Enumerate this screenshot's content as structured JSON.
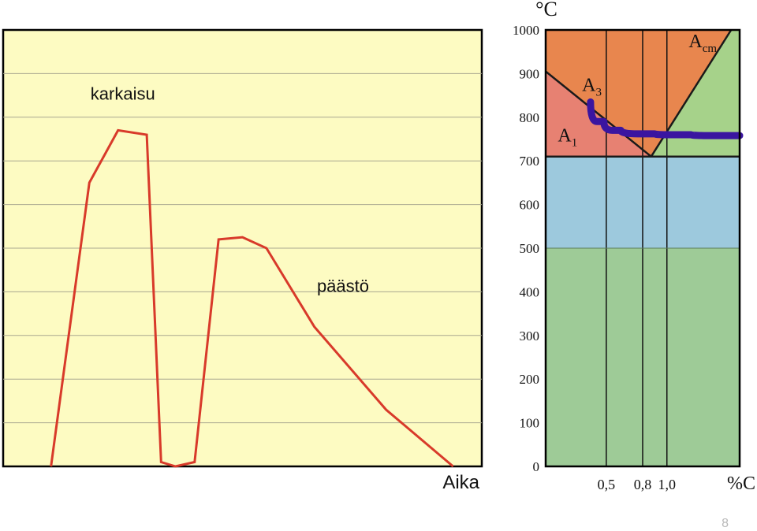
{
  "chart_data": [
    {
      "type": "line",
      "xlabel": "Aika",
      "series": [
        {
          "name": "",
          "points": [
            [
              0.1,
              0
            ],
            [
              0.18,
              650
            ],
            [
              0.24,
              770
            ],
            [
              0.3,
              760
            ],
            [
              0.33,
              10
            ],
            [
              0.36,
              0
            ],
            [
              0.4,
              10
            ],
            [
              0.45,
              520
            ],
            [
              0.5,
              525
            ],
            [
              0.55,
              500
            ],
            [
              0.65,
              320
            ],
            [
              0.8,
              130
            ],
            [
              0.94,
              0
            ]
          ]
        }
      ],
      "annotations": [
        {
          "label": "karkaisu",
          "x": 0.25,
          "y": 840
        },
        {
          "label": "päästö",
          "x": 0.71,
          "y": 400
        }
      ],
      "colors": {
        "background": "#fdfbc2",
        "line": "#d83a2a",
        "grid": "#a9a790"
      }
    },
    {
      "type": "area",
      "title": "",
      "yunit": "°C",
      "xunit": "%C",
      "ylim": [
        0,
        1000
      ],
      "xlim": [
        0,
        1.6
      ],
      "ytick_labels": [
        "0",
        "100",
        "200",
        "300",
        "400",
        "500",
        "600",
        "700",
        "800",
        "900",
        "1000"
      ],
      "yticks": [
        0,
        100,
        200,
        300,
        400,
        500,
        600,
        700,
        800,
        900,
        1000
      ],
      "xtick_labels": [
        "0,5",
        "0,8",
        "1,0"
      ],
      "xticks": [
        0.5,
        0.8,
        1.0
      ],
      "regions": [
        {
          "color": "#9ecb97",
          "y_range": [
            0,
            500
          ]
        },
        {
          "color": "#9dc9dd",
          "y_range": [
            500,
            710
          ]
        },
        {
          "color": "#e78172",
          "polygon": [
            [
              0,
              710
            ],
            [
              0.87,
              710
            ],
            [
              0,
              905
            ]
          ]
        },
        {
          "color": "#e8864e",
          "polygon": [
            [
              0,
              905
            ],
            [
              0.87,
              710
            ],
            [
              1.53,
              1000
            ],
            [
              0,
              1000
            ]
          ]
        },
        {
          "color": "#a6d28a",
          "polygon": [
            [
              0.87,
              710
            ],
            [
              1.6,
              710
            ],
            [
              1.6,
              1000
            ],
            [
              1.53,
              1000
            ]
          ]
        }
      ],
      "lines": {
        "A1": [
          [
            0,
            710
          ],
          [
            1.6,
            710
          ]
        ],
        "A3": [
          [
            0,
            905
          ],
          [
            0.87,
            710
          ]
        ],
        "Acm": [
          [
            0.87,
            710
          ],
          [
            1.53,
            1000
          ]
        ],
        "hardening_temperature": [
          [
            0.37,
            835
          ],
          [
            0.48,
            790
          ],
          [
            0.62,
            770
          ],
          [
            0.9,
            762
          ],
          [
            1.2,
            760
          ],
          [
            1.6,
            758
          ]
        ]
      },
      "line_labels": [
        {
          "text": "A",
          "sub": "1",
          "x": 0.1,
          "y": 745
        },
        {
          "text": "A",
          "sub": "3",
          "x": 0.3,
          "y": 860
        },
        {
          "text": "A",
          "sub": "cm",
          "x": 1.18,
          "y": 960
        }
      ],
      "colors": {
        "hardening_line": "#3a15a0",
        "phase_line": "#1a1a1a"
      }
    }
  ],
  "page_number": "8"
}
